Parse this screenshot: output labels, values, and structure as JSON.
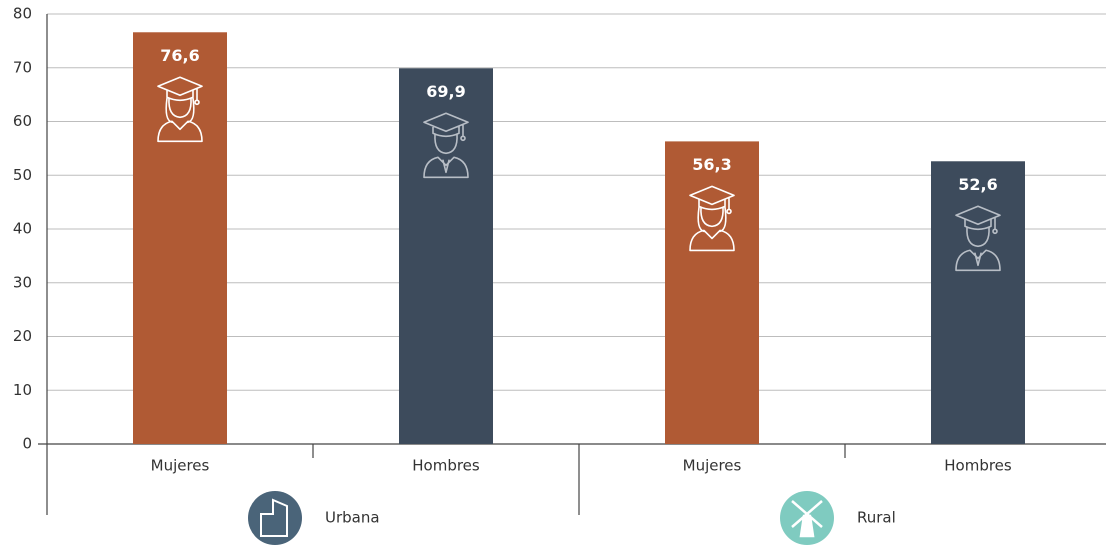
{
  "chart_data": {
    "type": "bar",
    "categories": [
      "Mujeres",
      "Hombres",
      "Mujeres",
      "Hombres"
    ],
    "groups": [
      "Urbana",
      "Rural"
    ],
    "values": [
      76.6,
      69.9,
      56.3,
      52.6
    ],
    "value_labels": [
      "76,6",
      "69,9",
      "56,3",
      "52,6"
    ],
    "colors": [
      "#b05a34",
      "#3d4b5c",
      "#b05a34",
      "#3d4b5c"
    ],
    "group_colors": [
      "#4a6479",
      "#7fcbc0"
    ],
    "ylim": [
      0,
      80
    ],
    "yticks": [
      0,
      10,
      20,
      30,
      40,
      50,
      60,
      70,
      80
    ],
    "grid": true
  }
}
